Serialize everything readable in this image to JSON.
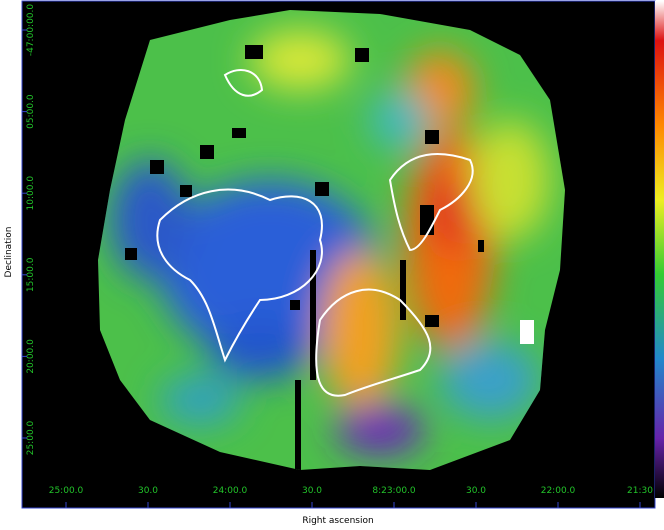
{
  "axes": {
    "y_title": "Declination",
    "x_title": "Right ascension",
    "y_labels": [
      "-47:00:00.0",
      "05:00.0",
      "10:00.0",
      "15:00.0",
      "20:00.0",
      "25:00.0"
    ],
    "x_labels": [
      "25:00.0",
      "30.0",
      "24:00.0",
      "30.0",
      "8:23:00.0",
      "30.0",
      "22:00.0",
      "21:30"
    ]
  }
}
